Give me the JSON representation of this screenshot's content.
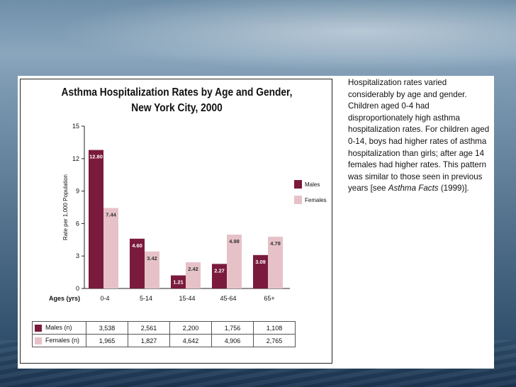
{
  "chart_data": {
    "type": "bar",
    "title_line1": "Asthma Hospitalization Rates by Age and Gender,",
    "title_line2": "New York City, 2000",
    "ylabel": "Rate per 1,000 Population",
    "xlabel": "Ages (yrs)",
    "ylim": [
      0,
      15
    ],
    "yticks": [
      0,
      3,
      6,
      9,
      12,
      15
    ],
    "categories": [
      "0-4",
      "5-14",
      "15-44",
      "45-64",
      "65+"
    ],
    "series": [
      {
        "name": "Males",
        "color": "#7a1a3c",
        "values": [
          12.8,
          4.6,
          1.21,
          2.27,
          3.09
        ],
        "labels": [
          "12.80",
          "4.60",
          "1.21",
          "2.27",
          "3.09"
        ]
      },
      {
        "name": "Females",
        "color": "#e6c2c8",
        "values": [
          7.44,
          3.42,
          2.42,
          4.98,
          4.79
        ],
        "labels": [
          "7.44",
          "3.42",
          "2.42",
          "4.98",
          "4.79"
        ]
      }
    ],
    "legend": [
      "Males",
      "Females"
    ]
  },
  "table": {
    "rows": [
      {
        "label": "Males (n)",
        "color": "#7a1a3c",
        "cells": [
          "3,538",
          "2,561",
          "2,200",
          "1,756",
          "1,108"
        ]
      },
      {
        "label": "Females (n)",
        "color": "#e6c2c8",
        "cells": [
          "1,965",
          "1,827",
          "4,642",
          "4,906",
          "2,765"
        ]
      }
    ]
  },
  "description": {
    "text_before": "Hospitalization rates varied considerably by age and gender. Children aged 0-4 had disproportionately high asthma hospitalization rates.  For children aged 0-14, boys had higher rates of asthma hospitalization than girls; after age 14 females had higher rates.  This pattern was similar to those seen in previous years [see ",
    "italic": "Asthma Facts",
    "text_after": " (1999)]."
  }
}
